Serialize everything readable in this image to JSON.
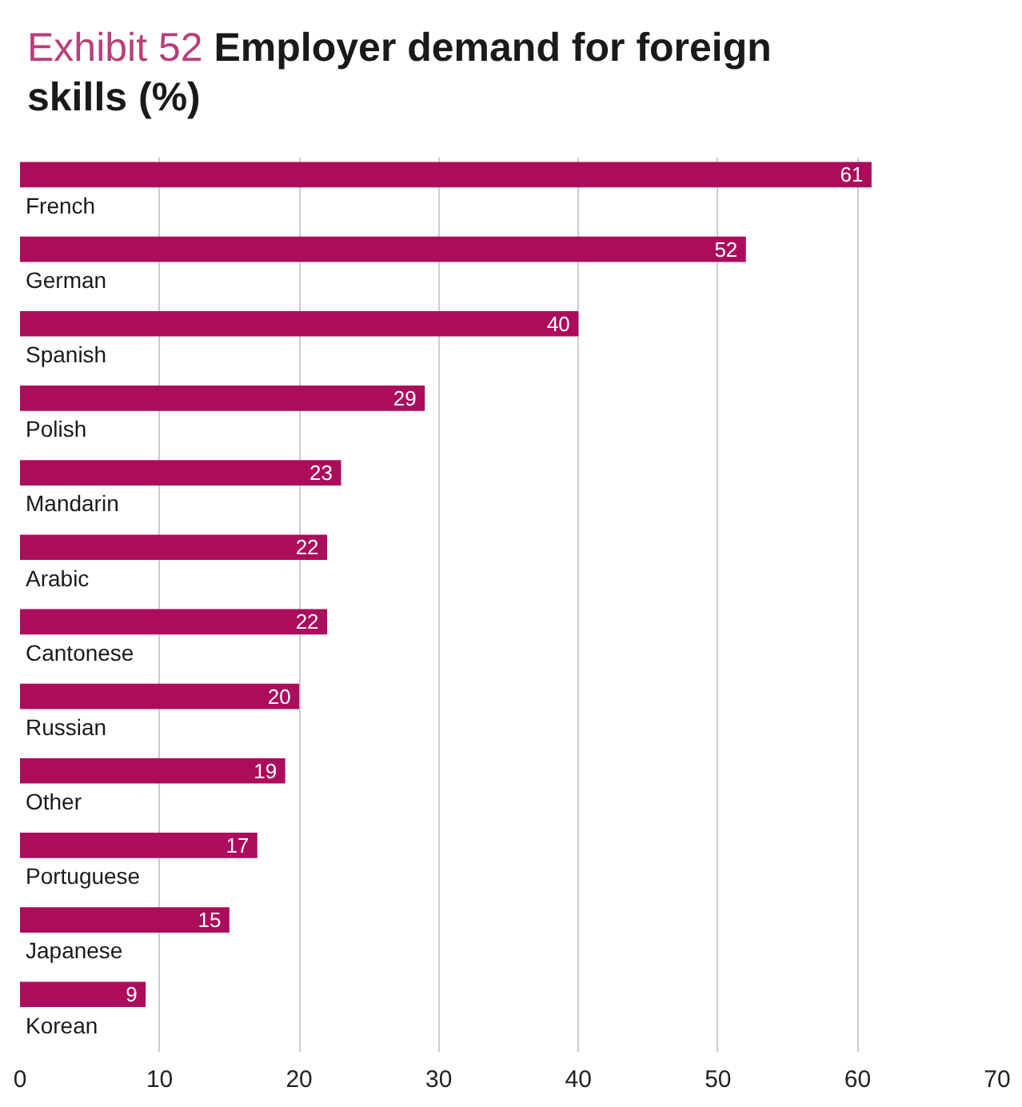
{
  "chart_data": {
    "type": "bar",
    "orientation": "horizontal",
    "title": "Exhibit 52",
    "subtitle": "Employer demand for foreign skills (%)",
    "categories": [
      "French",
      "German",
      "Spanish",
      "Polish",
      "Mandarin",
      "Arabic",
      "Cantonese",
      "Russian",
      "Other",
      "Portuguese",
      "Japanese",
      "Korean"
    ],
    "values": [
      61,
      52,
      40,
      29,
      23,
      22,
      22,
      20,
      19,
      17,
      15,
      9
    ],
    "color": "#ac0c5c",
    "xlim": [
      0,
      70
    ],
    "xticks": [
      0,
      10,
      20,
      30,
      40,
      50,
      60,
      70
    ],
    "grid": "x",
    "data_labels": true
  }
}
